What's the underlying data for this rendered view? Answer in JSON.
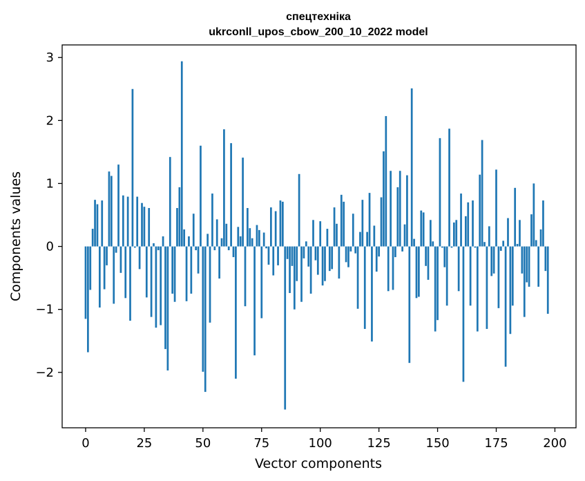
{
  "chart_data": {
    "type": "bar",
    "title": "спецтехніка",
    "subtitle": "ukrconll_upos_cbow_200_10_2022 model",
    "xlabel": "Vector components",
    "ylabel": "Components values",
    "xlim": [
      -10,
      209
    ],
    "ylim": [
      -2.88,
      3.2
    ],
    "xticks": [
      0,
      25,
      50,
      75,
      100,
      125,
      150,
      175,
      200
    ],
    "xtick_labels": [
      "0",
      "25",
      "50",
      "75",
      "100",
      "125",
      "150",
      "175",
      "200"
    ],
    "yticks": [
      -2,
      -1,
      0,
      1,
      2,
      3
    ],
    "ytick_labels": [
      "−2",
      "−1",
      "0",
      "1",
      "2",
      "3"
    ],
    "grid": false,
    "bar_color": "#1f77b4",
    "values": [
      -1.15,
      -1.68,
      -0.69,
      0.28,
      0.74,
      0.67,
      -0.97,
      0.73,
      -0.68,
      -0.3,
      1.19,
      1.12,
      -0.91,
      -0.1,
      1.3,
      -0.42,
      0.81,
      -0.82,
      0.79,
      -1.18,
      2.5,
      -0.02,
      0.79,
      -0.36,
      0.69,
      0.63,
      -0.81,
      0.61,
      -1.12,
      0.05,
      -1.29,
      -0.06,
      -1.25,
      0.16,
      -1.63,
      -1.97,
      1.42,
      -0.75,
      -0.88,
      0.61,
      0.94,
      2.94,
      0.27,
      -0.87,
      0.16,
      -0.75,
      0.52,
      -0.06,
      -0.43,
      1.6,
      -1.99,
      -2.31,
      0.2,
      -1.21,
      0.84,
      -0.06,
      0.43,
      -0.51,
      0.13,
      1.86,
      0.36,
      -0.06,
      1.64,
      -0.17,
      -2.1,
      0.31,
      0.16,
      1.41,
      -0.95,
      0.61,
      0.29,
      0.13,
      -1.73,
      0.34,
      0.26,
      -1.14,
      0.22,
      -0.03,
      -0.29,
      0.62,
      -0.46,
      0.56,
      -0.3,
      0.73,
      0.71,
      -2.59,
      -0.2,
      -0.74,
      -0.31,
      -1.0,
      -0.55,
      1.15,
      -0.88,
      -0.19,
      0.08,
      -0.32,
      -0.75,
      0.42,
      -0.22,
      -0.45,
      0.4,
      -0.62,
      -0.55,
      0.28,
      -0.39,
      -0.36,
      0.62,
      0.36,
      -0.51,
      0.82,
      0.71,
      -0.25,
      -0.33,
      -0.08,
      0.52,
      -0.11,
      -0.99,
      0.23,
      0.74,
      -1.31,
      0.23,
      0.85,
      -1.51,
      0.33,
      -0.4,
      -0.16,
      0.78,
      1.51,
      2.07,
      -0.71,
      1.2,
      -0.69,
      -0.17,
      0.94,
      1.2,
      -0.08,
      0.35,
      1.13,
      -1.85,
      2.51,
      0.12,
      -0.82,
      -0.8,
      0.57,
      0.54,
      -0.31,
      -0.53,
      0.42,
      0.08,
      -1.35,
      -1.17,
      1.72,
      -0.02,
      -0.33,
      -0.94,
      1.87,
      -0.02,
      0.38,
      0.42,
      -0.71,
      0.84,
      -2.15,
      0.48,
      0.7,
      -0.94,
      0.73,
      -0.02,
      -1.35,
      1.14,
      1.69,
      0.07,
      -1.31,
      0.32,
      -0.47,
      -0.43,
      1.22,
      -0.98,
      -0.07,
      0.09,
      -1.91,
      0.45,
      -1.39,
      -0.94,
      0.93,
      0.04,
      0.42,
      -0.43,
      -1.12,
      -0.57,
      -0.64,
      0.51,
      1.0,
      0.1,
      -0.64,
      0.27,
      0.73,
      -0.39,
      -1.07
    ]
  }
}
